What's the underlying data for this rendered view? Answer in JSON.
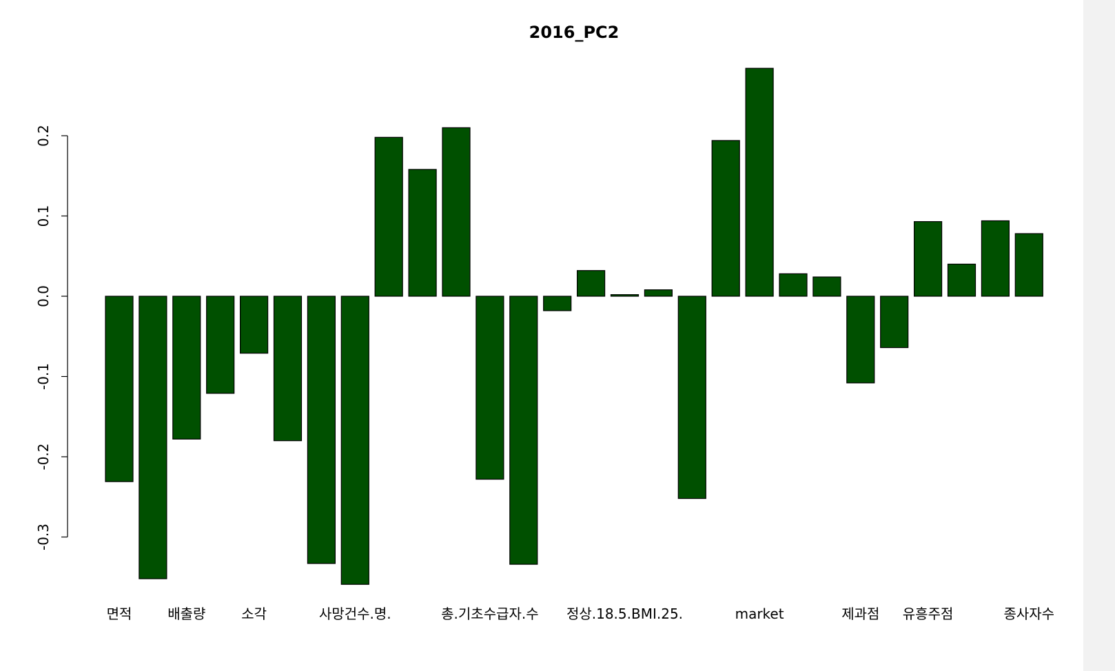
{
  "chart_data": {
    "type": "bar",
    "title": "2016_PC2",
    "xlabel": "",
    "ylabel": "",
    "ylim": [
      -0.36,
      0.29
    ],
    "yticks": [
      -0.3,
      -0.2,
      -0.1,
      0.0,
      0.1,
      0.2
    ],
    "ytick_labels": [
      "-0.3",
      "-0.2",
      "-0.1",
      "0.0",
      "0.1",
      "0.2"
    ],
    "bar_color": "#005000",
    "bar_border_color": "#000000",
    "grid": false,
    "values": [
      -0.231,
      -0.352,
      -0.178,
      -0.121,
      -0.071,
      -0.18,
      -0.333,
      -0.359,
      0.198,
      0.158,
      0.21,
      -0.228,
      -0.334,
      -0.018,
      0.032,
      0.002,
      0.008,
      -0.252,
      0.194,
      0.284,
      0.028,
      0.024,
      -0.108,
      -0.064,
      0.093,
      0.04,
      0.094,
      0.078
    ],
    "category_labels": [
      {
        "bar": 0,
        "text": "면적"
      },
      {
        "bar": 2,
        "text": "배출량"
      },
      {
        "bar": 4,
        "text": "소각"
      },
      {
        "bar": 7,
        "text": "사망건수.명."
      },
      {
        "bar": 11,
        "text": "총.기초수급자.수"
      },
      {
        "bar": 15,
        "text": "정상.18.5.BMI.25."
      },
      {
        "bar": 19,
        "text": "market"
      },
      {
        "bar": 22,
        "text": "제과점"
      },
      {
        "bar": 24,
        "text": "유흥주점"
      },
      {
        "bar": 27,
        "text": "종사자수"
      }
    ]
  }
}
